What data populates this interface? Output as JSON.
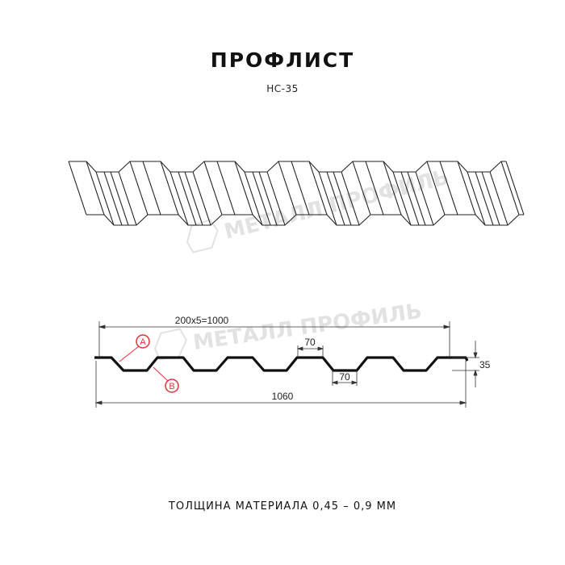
{
  "header": {
    "title": "ПРОФЛИСТ",
    "subtitle": "НС-35"
  },
  "watermark": {
    "text": "МЕТАЛЛ ПРОФИЛЬ",
    "color": "#e2e2e2"
  },
  "dimensions": {
    "pitch": "200x5=1000",
    "total_width": "1060",
    "top_flat": "70",
    "bottom_flat": "70",
    "height": "35"
  },
  "callouts": [
    {
      "label": "A"
    },
    {
      "label": "B"
    }
  ],
  "footer": {
    "text": "ТОЛЩИНА МАТЕРИАЛА 0,45 – 0,9 ММ"
  },
  "colors": {
    "callout": "#e0303a",
    "line": "#111111"
  }
}
